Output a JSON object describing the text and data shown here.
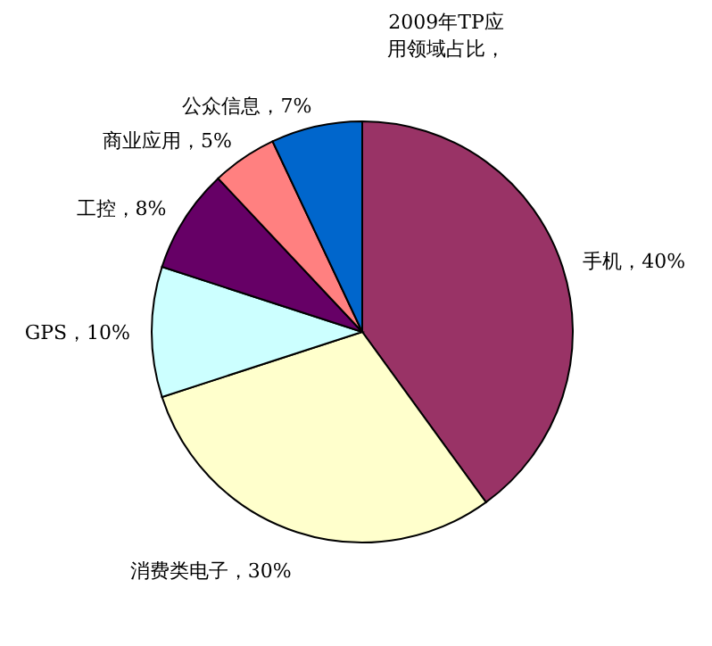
{
  "chart_data": {
    "type": "pie",
    "title": "2009年TP应用领域占比，",
    "categories": [
      "手机",
      "消费类电子",
      "GPS",
      "工控",
      "商业应用",
      "公众信息"
    ],
    "values": [
      40,
      30,
      10,
      8,
      5,
      7
    ],
    "value_labels": [
      "40%",
      "30%",
      "10%",
      "8%",
      "5%",
      "7%"
    ],
    "colors": [
      "#993366",
      "#ffffcc",
      "#ccffff",
      "#660066",
      "#ff8080",
      "#0066cc"
    ]
  }
}
